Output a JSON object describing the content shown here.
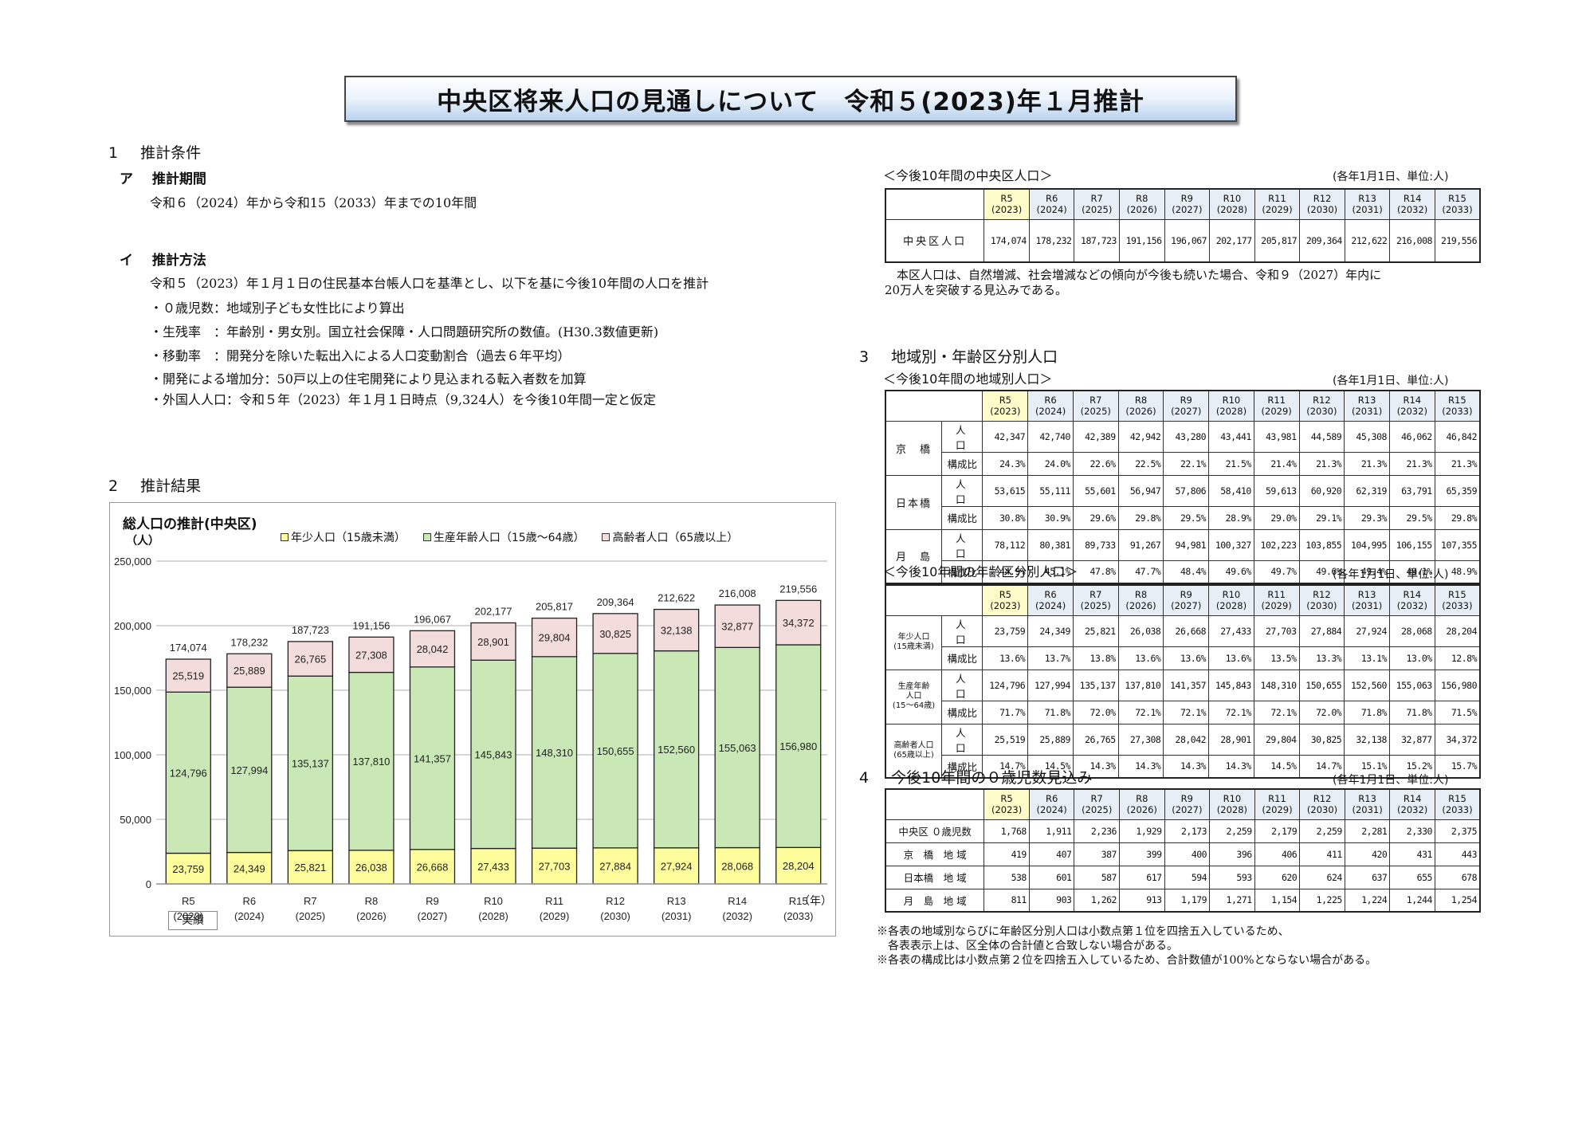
{
  "title": "中央区将来人口の見通しについて　令和５(2023)年１月推計",
  "section1": {
    "heading_num": "1",
    "heading": "推計条件",
    "a": {
      "label": "ア",
      "heading": "推計期間",
      "text": "令和６（2024）年から令和15（2033）年までの10年間"
    },
    "b": {
      "label": "イ",
      "heading": "推計方法",
      "intro": "令和５（2023）年１月１日の住民基本台帳人口を基準とし、以下を基に今後10年間の人口を推計",
      "items": [
        "・０歳児数：地域別子ども女性比により算出",
        "・生残率　：年齢別・男女別。国立社会保障・人口問題研究所の数値。(H30.3数値更新)",
        "・移動率　：開発分を除いた転出入による人口変動割合（過去６年平均）",
        "・開発による増加分：50戸以上の住宅開発により見込まれる転入者数を加算",
        "・外国人人口：令和５年（2023）年１月１日時点（9,324人）を今後10年間一定と仮定"
      ]
    }
  },
  "section2": {
    "heading_num": "2",
    "heading": "推計結果"
  },
  "chart_data": {
    "type": "bar",
    "stacked": true,
    "title": "総人口の推計(中央区)",
    "ylabel": "（人）",
    "xlabel": "（年）",
    "ylim": [
      0,
      250000
    ],
    "yticks": [
      "250,000",
      "200,000",
      "150,000",
      "100,000",
      "50,000",
      "0"
    ],
    "grid": true,
    "legend_position": "top",
    "categories": [
      "R5\n(2023)",
      "R6\n(2024)",
      "R7\n(2025)",
      "R8\n(2026)",
      "R9\n(2027)",
      "R10\n(2028)",
      "R11\n(2029)",
      "R12\n(2030)",
      "R13\n(2031)",
      "R14\n(2032)",
      "R15\n(2033)"
    ],
    "category_labels": [
      {
        "top": "R5",
        "bottom": "(2023)"
      },
      {
        "top": "R6",
        "bottom": "(2024)"
      },
      {
        "top": "R7",
        "bottom": "(2025)"
      },
      {
        "top": "R8",
        "bottom": "(2026)"
      },
      {
        "top": "R9",
        "bottom": "(2027)"
      },
      {
        "top": "R10",
        "bottom": "(2028)"
      },
      {
        "top": "R11",
        "bottom": "(2029)"
      },
      {
        "top": "R12",
        "bottom": "(2030)"
      },
      {
        "top": "R13",
        "bottom": "(2031)"
      },
      {
        "top": "R14",
        "bottom": "(2032)"
      },
      {
        "top": "R15",
        "bottom": "(2033)"
      }
    ],
    "series": [
      {
        "name": "年少人口（15歳未満）",
        "color": "#fdfd9c",
        "values": [
          23759,
          24349,
          25821,
          26038,
          26668,
          27433,
          27703,
          27884,
          27924,
          28068,
          28204
        ],
        "labels": [
          "23,759",
          "24,349",
          "25,821",
          "26,038",
          "26,668",
          "27,433",
          "27,703",
          "27,884",
          "27,924",
          "28,068",
          "28,204"
        ]
      },
      {
        "name": "生産年齢人口（15歳～64歳）",
        "color": "#c9e8b6",
        "values": [
          124796,
          127994,
          135137,
          137810,
          141357,
          145843,
          148310,
          150655,
          152560,
          155063,
          156980
        ],
        "labels": [
          "124,796",
          "127,994",
          "135,137",
          "137,810",
          "141,357",
          "145,843",
          "148,310",
          "150,655",
          "152,560",
          "155,063",
          "156,980"
        ]
      },
      {
        "name": "高齢者人口（65歳以上）",
        "color": "#f3dcdc",
        "values": [
          25519,
          25889,
          26765,
          27308,
          28042,
          28901,
          29804,
          30825,
          32138,
          32877,
          34372
        ],
        "labels": [
          "25,519",
          "25,889",
          "26,765",
          "27,308",
          "28,042",
          "28,901",
          "29,804",
          "30,825",
          "32,138",
          "32,877",
          "34,372"
        ]
      }
    ],
    "totals": [
      174074,
      178232,
      187723,
      191156,
      196067,
      202177,
      205817,
      209364,
      212622,
      216008,
      219556
    ],
    "total_labels": [
      "174,074",
      "178,232",
      "187,723",
      "191,156",
      "196,067",
      "202,177",
      "205,817",
      "209,364",
      "212,622",
      "216,008",
      "219,556"
    ],
    "annotation": "実績"
  },
  "table_total": {
    "caption": "＜今後10年間の中央区人口＞",
    "unit": "(各年1月1日、単位:人)",
    "years": [
      {
        "r": "R5",
        "y": "(2023)"
      },
      {
        "r": "R6",
        "y": "(2024)"
      },
      {
        "r": "R7",
        "y": "(2025)"
      },
      {
        "r": "R8",
        "y": "(2026)"
      },
      {
        "r": "R9",
        "y": "(2027)"
      },
      {
        "r": "R10",
        "y": "(2028)"
      },
      {
        "r": "R11",
        "y": "(2029)"
      },
      {
        "r": "R12",
        "y": "(2030)"
      },
      {
        "r": "R13",
        "y": "(2031)"
      },
      {
        "r": "R14",
        "y": "(2032)"
      },
      {
        "r": "R15",
        "y": "(2033)"
      }
    ],
    "row_label": "中央区人口",
    "values": [
      "174,074",
      "178,232",
      "187,723",
      "191,156",
      "196,067",
      "202,177",
      "205,817",
      "209,364",
      "212,622",
      "216,008",
      "219,556"
    ],
    "note_line1": "　本区人口は、自然増減、社会増減などの傾向が今後も続いた場合、令和９（2027）年内に",
    "note_line2": "20万人を突破する見込みである。"
  },
  "section3": {
    "heading_num": "3",
    "heading": "地域別・年齢区分別人口"
  },
  "table_region": {
    "caption": "＜今後10年間の地域別人口＞",
    "unit": "(各年1月1日、単位:人)",
    "sub_pop": "人　口",
    "sub_pct": "構成比",
    "rows": [
      {
        "label": "京　橋",
        "pop": [
          "42,347",
          "42,740",
          "42,389",
          "42,942",
          "43,280",
          "43,441",
          "43,981",
          "44,589",
          "45,308",
          "46,062",
          "46,842"
        ],
        "pct": [
          "24.3%",
          "24.0%",
          "22.6%",
          "22.5%",
          "22.1%",
          "21.5%",
          "21.4%",
          "21.3%",
          "21.3%",
          "21.3%",
          "21.3%"
        ]
      },
      {
        "label": "日本橋",
        "pop": [
          "53,615",
          "55,111",
          "55,601",
          "56,947",
          "57,806",
          "58,410",
          "59,613",
          "60,920",
          "62,319",
          "63,791",
          "65,359"
        ],
        "pct": [
          "30.8%",
          "30.9%",
          "29.6%",
          "29.8%",
          "29.5%",
          "28.9%",
          "29.0%",
          "29.1%",
          "29.3%",
          "29.5%",
          "29.8%"
        ]
      },
      {
        "label": "月　島",
        "pop": [
          "78,112",
          "80,381",
          "89,733",
          "91,267",
          "94,981",
          "100,327",
          "102,223",
          "103,855",
          "104,995",
          "106,155",
          "107,355"
        ],
        "pct": [
          "44.9%",
          "45.1%",
          "47.8%",
          "47.7%",
          "48.4%",
          "49.6%",
          "49.7%",
          "49.6%",
          "49.4%",
          "49.1%",
          "48.9%"
        ]
      }
    ]
  },
  "table_age": {
    "caption": "＜今後10年間の年齢区分別人口＞",
    "unit": "(各年1月1日、単位:人)",
    "sub_pop": "人　口",
    "sub_pct": "構成比",
    "rows": [
      {
        "label1": "年少人口",
        "label2": "(15歳未満)",
        "label3": "",
        "pop": [
          "23,759",
          "24,349",
          "25,821",
          "26,038",
          "26,668",
          "27,433",
          "27,703",
          "27,884",
          "27,924",
          "28,068",
          "28,204"
        ],
        "pct": [
          "13.6%",
          "13.7%",
          "13.8%",
          "13.6%",
          "13.6%",
          "13.6%",
          "13.5%",
          "13.3%",
          "13.1%",
          "13.0%",
          "12.8%"
        ]
      },
      {
        "label1": "生産年齢",
        "label2": "人口",
        "label3": "(15～64歳)",
        "pop": [
          "124,796",
          "127,994",
          "135,137",
          "137,810",
          "141,357",
          "145,843",
          "148,310",
          "150,655",
          "152,560",
          "155,063",
          "156,980"
        ],
        "pct": [
          "71.7%",
          "71.8%",
          "72.0%",
          "72.1%",
          "72.1%",
          "72.1%",
          "72.1%",
          "72.0%",
          "71.8%",
          "71.8%",
          "71.5%"
        ]
      },
      {
        "label1": "高齢者人口",
        "label2": "(65歳以上)",
        "label3": "",
        "pop": [
          "25,519",
          "25,889",
          "26,765",
          "27,308",
          "28,042",
          "28,901",
          "29,804",
          "30,825",
          "32,138",
          "32,877",
          "34,372"
        ],
        "pct": [
          "14.7%",
          "14.5%",
          "14.3%",
          "14.3%",
          "14.3%",
          "14.3%",
          "14.5%",
          "14.7%",
          "15.1%",
          "15.2%",
          "15.7%"
        ]
      }
    ]
  },
  "section4": {
    "heading_num": "4",
    "heading": "今後10年間の０歳児数見込み",
    "unit": "(各年1月1日、単位:人)"
  },
  "table_infant": {
    "rows": [
      {
        "label": "中央区 ０歳児数",
        "values": [
          "1,768",
          "1,911",
          "2,236",
          "1,929",
          "2,173",
          "2,259",
          "2,179",
          "2,259",
          "2,281",
          "2,330",
          "2,375"
        ]
      },
      {
        "label": "京　橋　地 域",
        "values": [
          "419",
          "407",
          "387",
          "399",
          "400",
          "396",
          "406",
          "411",
          "420",
          "431",
          "443"
        ]
      },
      {
        "label": "日本橋　地 域",
        "values": [
          "538",
          "601",
          "587",
          "617",
          "594",
          "593",
          "620",
          "624",
          "637",
          "655",
          "678"
        ]
      },
      {
        "label": "月　島　地 域",
        "values": [
          "811",
          "903",
          "1,262",
          "913",
          "1,179",
          "1,271",
          "1,154",
          "1,225",
          "1,224",
          "1,244",
          "1,254"
        ]
      }
    ]
  },
  "footnotes": [
    "※各表の地域別ならびに年齢区分別人口は小数点第１位を四捨五入しているため、",
    "　各表表示上は、区全体の合計値と合致しない場合がある。",
    "※各表の構成比は小数点第２位を四捨五入しているため、合計数値が100%とならない場合がある。"
  ]
}
